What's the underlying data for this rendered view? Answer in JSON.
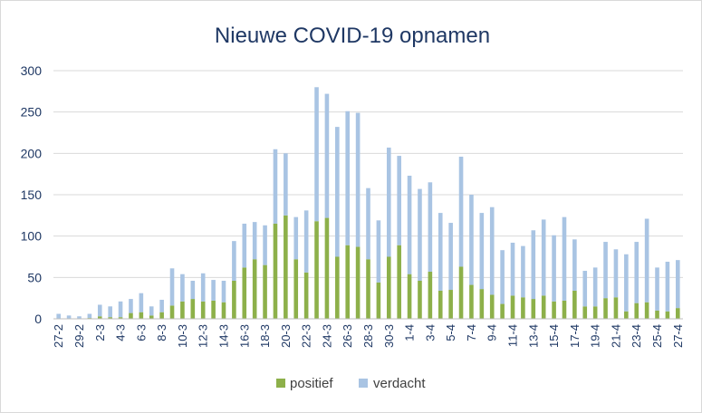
{
  "chart_data": {
    "type": "bar",
    "stacked": true,
    "title": "Nieuwe COVID-19 opnamen",
    "xlabel": "",
    "ylabel": "",
    "ylim": [
      0,
      300
    ],
    "yticks": [
      0,
      50,
      100,
      150,
      200,
      250,
      300
    ],
    "grid": true,
    "legend_position": "bottom",
    "categories": [
      "27-2",
      "28-2",
      "29-2",
      "1-3",
      "2-3",
      "3-3",
      "4-3",
      "5-3",
      "6-3",
      "7-3",
      "8-3",
      "9-3",
      "10-3",
      "11-3",
      "12-3",
      "13-3",
      "14-3",
      "15-3",
      "16-3",
      "17-3",
      "18-3",
      "19-3",
      "20-3",
      "21-3",
      "22-3",
      "23-3",
      "24-3",
      "25-3",
      "26-3",
      "27-3",
      "28-3",
      "29-3",
      "30-3",
      "31-3",
      "1-4",
      "2-4",
      "3-4",
      "4-4",
      "5-4",
      "6-4",
      "7-4",
      "8-4",
      "9-4",
      "10-4",
      "11-4",
      "12-4",
      "13-4",
      "14-4",
      "15-4",
      "16-4",
      "17-4",
      "18-4",
      "19-4",
      "20-4",
      "21-4",
      "22-4",
      "23-4",
      "24-4",
      "25-4",
      "26-4",
      "27-4"
    ],
    "xtick_labels": [
      "27-2",
      "29-2",
      "2-3",
      "4-3",
      "6-3",
      "8-3",
      "10-3",
      "12-3",
      "14-3",
      "16-3",
      "18-3",
      "20-3",
      "22-3",
      "24-3",
      "26-3",
      "28-3",
      "30-3",
      "1-4",
      "3-4",
      "5-4",
      "7-4",
      "9-4",
      "11-4",
      "13-4",
      "15-4",
      "17-4",
      "19-4",
      "21-4",
      "23-4",
      "25-4",
      "27-4"
    ],
    "series": [
      {
        "name": "positief",
        "color": "#8db04a",
        "values": [
          0,
          0,
          0,
          1,
          3,
          2,
          2,
          7,
          8,
          4,
          8,
          16,
          21,
          24,
          21,
          22,
          20,
          46,
          62,
          72,
          65,
          115,
          125,
          72,
          56,
          118,
          122,
          75,
          89,
          87,
          72,
          44,
          75,
          89,
          54,
          46,
          57,
          34,
          35,
          63,
          41,
          36,
          29,
          18,
          28,
          26,
          24,
          28,
          21,
          22,
          34,
          15,
          15,
          25,
          26,
          9,
          19,
          20,
          10,
          9,
          13
        ]
      },
      {
        "name": "verdacht",
        "color": "#a9c4e3",
        "values": [
          6,
          4,
          3,
          5,
          14,
          13,
          19,
          17,
          23,
          11,
          15,
          45,
          33,
          22,
          34,
          25,
          26,
          48,
          53,
          45,
          48,
          90,
          75,
          51,
          75,
          162,
          150,
          157,
          162,
          162,
          86,
          75,
          132,
          108,
          119,
          111,
          108,
          94,
          81,
          133,
          109,
          92,
          106,
          65,
          64,
          62,
          83,
          92,
          80,
          101,
          62,
          43,
          47,
          68,
          58,
          69,
          74,
          101,
          52,
          60,
          58
        ]
      }
    ]
  }
}
